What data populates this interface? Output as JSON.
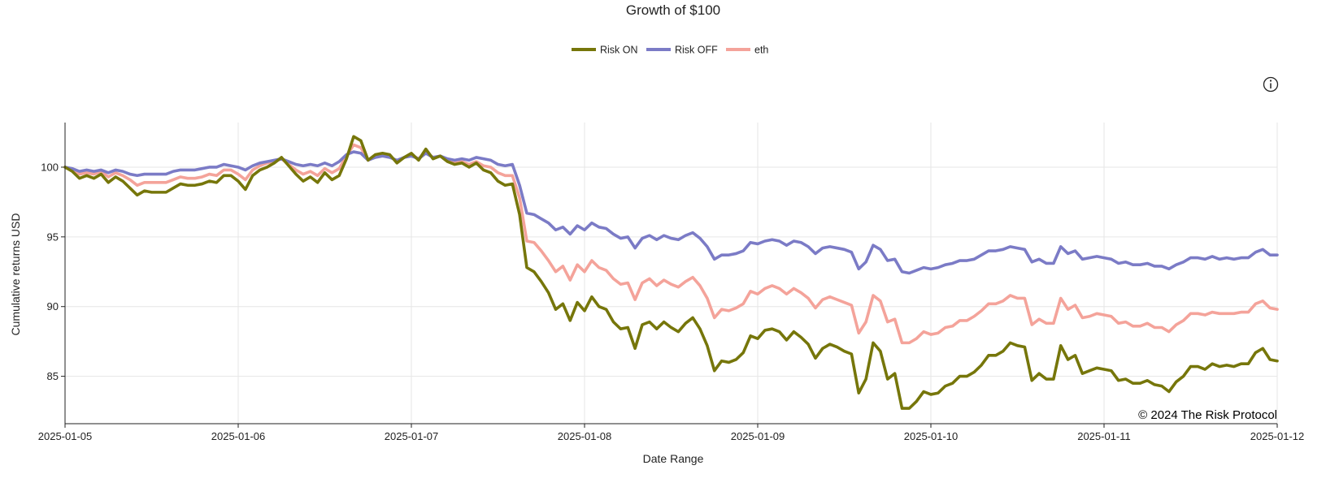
{
  "chart_data": {
    "type": "line",
    "title": "Growth of $100",
    "xlabel": "Date Range",
    "ylabel": "Cumulative returns USD",
    "x_range": [
      "2025-01-05",
      "2025-01-12"
    ],
    "x_ticks": [
      "2025-01-05",
      "2025-01-06",
      "2025-01-07",
      "2025-01-08",
      "2025-01-09",
      "2025-01-10",
      "2025-01-11",
      "2025-01-12"
    ],
    "ylim": [
      81.6,
      103.2
    ],
    "y_ticks": [
      85,
      90,
      95,
      100
    ],
    "grid": true,
    "legend_position": "top-center",
    "points_per_day": 24,
    "series": [
      {
        "name": "Risk ON",
        "color": "#76760a",
        "values": [
          100,
          99.7,
          99.2,
          99.4,
          99.2,
          99.5,
          98.9,
          99.3,
          99,
          98.5,
          98,
          98.3,
          98.2,
          98.2,
          98.2,
          98.5,
          98.8,
          98.7,
          98.7,
          98.8,
          99,
          98.9,
          99.4,
          99.4,
          99,
          98.4,
          99.4,
          99.8,
          100,
          100.3,
          100.7,
          100.1,
          99.5,
          99,
          99.3,
          98.9,
          99.6,
          99.1,
          99.4,
          100.6,
          102.2,
          101.9,
          100.5,
          100.9,
          101,
          100.9,
          100.3,
          100.7,
          101,
          100.5,
          101.3,
          100.6,
          100.8,
          100.4,
          100.2,
          100.3,
          100,
          100.3,
          99.8,
          99.6,
          99,
          98.7,
          98.8,
          96.6,
          92.8,
          92.5,
          91.8,
          91,
          89.8,
          90.2,
          89,
          90.3,
          89.7,
          90.7,
          90,
          89.8,
          88.9,
          88.4,
          88.5,
          87,
          88.7,
          88.9,
          88.4,
          88.9,
          88.5,
          88.2,
          88.8,
          89.2,
          88.4,
          87.2,
          85.4,
          86.1,
          86,
          86.2,
          86.7,
          87.9,
          87.7,
          88.3,
          88.4,
          88.2,
          87.6,
          88.2,
          87.8,
          87.3,
          86.3,
          87,
          87.3,
          87.1,
          86.8,
          86.6,
          83.8,
          84.8,
          87.4,
          86.8,
          84.8,
          85.2,
          82.7,
          82.7,
          83.2,
          83.9,
          83.7,
          83.8,
          84.3,
          84.5,
          85,
          85,
          85.3,
          85.8,
          86.5,
          86.5,
          86.8,
          87.4,
          87.2,
          87.1,
          84.7,
          85.2,
          84.8,
          84.8,
          87.2,
          86.2,
          86.5,
          85.2,
          85.4,
          85.6,
          85.5,
          85.4,
          84.7,
          84.8,
          84.5,
          84.5,
          84.7,
          84.4,
          84.3,
          83.9,
          84.6,
          85,
          85.7,
          85.7,
          85.5,
          85.9,
          85.7,
          85.8,
          85.7,
          85.9,
          85.9,
          86.7,
          87,
          86.2,
          86.1
        ]
      },
      {
        "name": "Risk OFF",
        "color": "#7b7bc6",
        "values": [
          100,
          99.9,
          99.7,
          99.8,
          99.7,
          99.8,
          99.6,
          99.8,
          99.7,
          99.5,
          99.4,
          99.5,
          99.5,
          99.5,
          99.5,
          99.7,
          99.8,
          99.8,
          99.8,
          99.9,
          100,
          100,
          100.2,
          100.1,
          100,
          99.8,
          100.1,
          100.3,
          100.4,
          100.5,
          100.6,
          100.4,
          100.2,
          100.1,
          100.2,
          100.1,
          100.3,
          100.1,
          100.4,
          100.9,
          101.1,
          101,
          100.5,
          100.7,
          100.8,
          100.7,
          100.5,
          100.7,
          100.8,
          100.6,
          101,
          100.7,
          100.8,
          100.6,
          100.5,
          100.6,
          100.5,
          100.7,
          100.6,
          100.5,
          100.2,
          100.1,
          100.2,
          98.7,
          96.7,
          96.6,
          96.3,
          96,
          95.5,
          95.7,
          95.2,
          95.8,
          95.5,
          96,
          95.7,
          95.6,
          95.2,
          94.9,
          95,
          94.2,
          94.9,
          95.1,
          94.8,
          95.1,
          94.9,
          94.8,
          95.1,
          95.3,
          94.9,
          94.3,
          93.4,
          93.7,
          93.7,
          93.8,
          94,
          94.6,
          94.5,
          94.7,
          94.8,
          94.7,
          94.4,
          94.7,
          94.6,
          94.3,
          93.8,
          94.2,
          94.3,
          94.2,
          94.1,
          93.9,
          92.7,
          93.2,
          94.4,
          94.1,
          93.3,
          93.4,
          92.5,
          92.4,
          92.6,
          92.8,
          92.7,
          92.8,
          93,
          93.1,
          93.3,
          93.3,
          93.4,
          93.7,
          94,
          94,
          94.1,
          94.3,
          94.2,
          94.1,
          93.2,
          93.4,
          93.1,
          93.1,
          94.3,
          93.8,
          94,
          93.4,
          93.5,
          93.6,
          93.5,
          93.4,
          93.1,
          93.2,
          93,
          93,
          93.1,
          92.9,
          92.9,
          92.7,
          93,
          93.2,
          93.5,
          93.5,
          93.4,
          93.6,
          93.4,
          93.5,
          93.4,
          93.5,
          93.5,
          93.9,
          94.1,
          93.7,
          93.7
        ]
      },
      {
        "name": "eth",
        "color": "#f4a39a",
        "values": [
          100,
          99.8,
          99.5,
          99.6,
          99.5,
          99.7,
          99.3,
          99.6,
          99.4,
          99.1,
          98.7,
          98.9,
          98.9,
          98.9,
          98.9,
          99.1,
          99.3,
          99.2,
          99.2,
          99.3,
          99.5,
          99.4,
          99.8,
          99.8,
          99.5,
          99.1,
          99.8,
          100.1,
          100.3,
          100.4,
          100.6,
          100.2,
          99.8,
          99.5,
          99.7,
          99.4,
          99.9,
          99.6,
          99.9,
          100.8,
          101.6,
          101.4,
          100.5,
          100.8,
          100.9,
          100.8,
          100.4,
          100.7,
          100.9,
          100.6,
          101.1,
          100.7,
          100.8,
          100.5,
          100.3,
          100.4,
          100.2,
          100.4,
          100.1,
          100,
          99.6,
          99.4,
          99.4,
          97.8,
          94.7,
          94.6,
          94,
          93.3,
          92.5,
          92.9,
          91.9,
          93,
          92.5,
          93.3,
          92.8,
          92.6,
          92,
          91.6,
          91.7,
          90.5,
          91.7,
          92,
          91.5,
          91.9,
          91.6,
          91.4,
          91.8,
          92.1,
          91.5,
          90.6,
          89.2,
          89.8,
          89.7,
          89.9,
          90.2,
          91.1,
          90.9,
          91.3,
          91.5,
          91.3,
          90.9,
          91.3,
          91,
          90.6,
          89.9,
          90.5,
          90.7,
          90.5,
          90.3,
          90.1,
          88.1,
          88.9,
          90.8,
          90.4,
          88.9,
          89.1,
          87.4,
          87.4,
          87.7,
          88.2,
          88,
          88.1,
          88.5,
          88.6,
          89,
          89,
          89.3,
          89.7,
          90.2,
          90.2,
          90.4,
          90.8,
          90.6,
          90.6,
          88.7,
          89.1,
          88.8,
          88.8,
          90.6,
          89.8,
          90.1,
          89.2,
          89.3,
          89.5,
          89.4,
          89.3,
          88.8,
          88.9,
          88.6,
          88.6,
          88.8,
          88.5,
          88.5,
          88.2,
          88.7,
          89,
          89.5,
          89.5,
          89.4,
          89.6,
          89.5,
          89.5,
          89.5,
          89.6,
          89.6,
          90.2,
          90.4,
          89.9,
          89.8
        ]
      }
    ],
    "annotation": "© 2024 The Risk Protocol"
  },
  "icons": {
    "info": "info-icon"
  }
}
